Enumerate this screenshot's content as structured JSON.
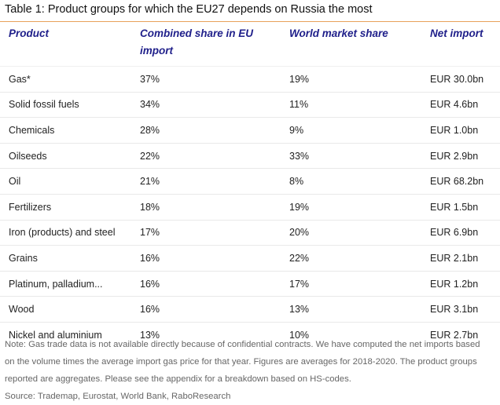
{
  "title": "Table 1: Product groups for which the EU27 depends on Russia the most",
  "headers": {
    "product": "Product",
    "combined_line1": "Combined share in EU",
    "combined_line2": "import",
    "world": "World market share",
    "net": "Net import"
  },
  "rows": [
    {
      "product": "Gas*",
      "combined": "37%",
      "world": "19%",
      "net": "EUR 30.0bn"
    },
    {
      "product": "Solid fossil fuels",
      "combined": "34%",
      "world": "11%",
      "net": "EUR 4.6bn"
    },
    {
      "product": "Chemicals",
      "combined": "28%",
      "world": "9%",
      "net": "EUR 1.0bn"
    },
    {
      "product": "Oilseeds",
      "combined": "22%",
      "world": "33%",
      "net": "EUR 2.9bn"
    },
    {
      "product": "Oil",
      "combined": "21%",
      "world": "8%",
      "net": "EUR 68.2bn"
    },
    {
      "product": "Fertilizers",
      "combined": "18%",
      "world": "19%",
      "net": "EUR 1.5bn"
    },
    {
      "product": "Iron (products) and steel",
      "combined": "17%",
      "world": "20%",
      "net": "EUR 6.9bn"
    },
    {
      "product": "Grains",
      "combined": "16%",
      "world": "22%",
      "net": "EUR 2.1bn"
    },
    {
      "product": "Platinum, palladium...",
      "combined": "16%",
      "world": "17%",
      "net": "EUR 1.2bn"
    },
    {
      "product": "Wood",
      "combined": "16%",
      "world": "13%",
      "net": "EUR 3.1bn"
    },
    {
      "product": "Nickel and aluminium",
      "combined": "13%",
      "world": "10%",
      "net": "EUR 2.7bn"
    }
  ],
  "notes": {
    "line1": "Note: Gas trade data is not available directly because of confidential contracts. We have computed the net imports based",
    "line2": "on the volume times the average import gas price for that year. Figures are averages for 2018-2020. The product groups",
    "line3": "reported are aggregates. Please see the appendix for a breakdown based on HS-codes.",
    "source": "Source: Trademap, Eurostat, World Bank, RaboResearch"
  }
}
